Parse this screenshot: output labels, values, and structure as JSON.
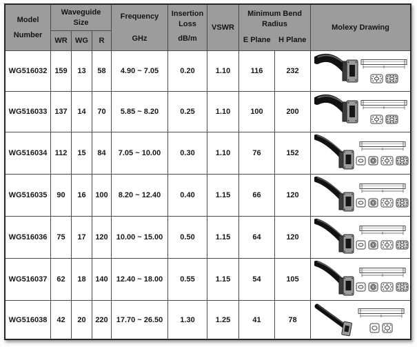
{
  "colors": {
    "header_bg": "#9c9c9c",
    "grid_line": "#4a4a4a",
    "outer_border": "#262626",
    "text": "#161616"
  },
  "header": {
    "model": [
      "Model",
      "Number"
    ],
    "waveguide_size": [
      "Waveguide",
      "Size"
    ],
    "wr": "WR",
    "wg": "WG",
    "r": "R",
    "frequency": "Frequency",
    "frequency_unit": "GHz",
    "insertion_loss": [
      "Insertion",
      "Loss"
    ],
    "insertion_unit": "dB/m",
    "vswr": "VSWR",
    "min_bend": [
      "Minimum Bend",
      "Radius"
    ],
    "e_plane": "E Plane",
    "h_plane": "H Plane",
    "molexy": "Molexy Drawing"
  },
  "rows": [
    {
      "model": "WG516032",
      "wr": "159",
      "wg": "13",
      "r": "58",
      "freq": "4.90 ~ 7.05",
      "loss": "0.20",
      "vswr": "1.10",
      "e": "116",
      "h": "232",
      "drawing": {
        "guide": "short-curved",
        "flanges": [
          "dots",
          "dense"
        ]
      }
    },
    {
      "model": "WG516033",
      "wr": "137",
      "wg": "14",
      "r": "70",
      "freq": "5.85 ~ 8.20",
      "loss": "0.25",
      "vswr": "1.10",
      "e": "100",
      "h": "200",
      "drawing": {
        "guide": "short-curved",
        "flanges": [
          "dots",
          "dense"
        ]
      }
    },
    {
      "model": "WG516034",
      "wr": "112",
      "wg": "15",
      "r": "84",
      "freq": "7.05 ~ 10.00",
      "loss": "0.30",
      "vswr": "1.10",
      "e": "76",
      "h": "152",
      "drawing": {
        "guide": "long-curved",
        "flanges": [
          "oval",
          "ring",
          "dots",
          "dense"
        ]
      }
    },
    {
      "model": "WG516035",
      "wr": "90",
      "wg": "16",
      "r": "100",
      "freq": "8.20 ~ 12.40",
      "loss": "0.40",
      "vswr": "1.15",
      "e": "66",
      "h": "120",
      "drawing": {
        "guide": "long-curved",
        "flanges": [
          "oval",
          "ring",
          "dots",
          "dense"
        ]
      }
    },
    {
      "model": "WG516036",
      "wr": "75",
      "wg": "17",
      "r": "120",
      "freq": "10.00 ~ 15.00",
      "loss": "0.50",
      "vswr": "1.15",
      "e": "64",
      "h": "120",
      "drawing": {
        "guide": "long-curved",
        "flanges": [
          "oval",
          "ring",
          "dots",
          "dense"
        ]
      }
    },
    {
      "model": "WG516037",
      "wr": "62",
      "wg": "18",
      "r": "140",
      "freq": "12.40 ~ 18.00",
      "loss": "0.55",
      "vswr": "1.15",
      "e": "54",
      "h": "105",
      "drawing": {
        "guide": "long-curved",
        "flanges": [
          "oval",
          "ring",
          "dots",
          "dense"
        ]
      }
    },
    {
      "model": "WG516038",
      "wr": "42",
      "wg": "20",
      "r": "220",
      "freq": "17.70 ~ 26.50",
      "loss": "1.30",
      "vswr": "1.25",
      "e": "41",
      "h": "78",
      "drawing": {
        "guide": "straight",
        "flanges": [
          "round",
          "round-ring"
        ]
      }
    }
  ],
  "chart_data": {
    "type": "table",
    "columns": [
      "Model Number",
      "WR",
      "WG",
      "R",
      "Frequency (GHz)",
      "Insertion Loss (dB/m)",
      "VSWR",
      "Minimum Bend Radius E Plane",
      "Minimum Bend Radius H Plane",
      "Molexy Drawing"
    ],
    "rows": [
      [
        "WG516032",
        "159",
        "13",
        "58",
        "4.90 ~ 7.05",
        "0.20",
        "1.10",
        "116",
        "232",
        "flex waveguide drawing"
      ],
      [
        "WG516033",
        "137",
        "14",
        "70",
        "5.85 ~ 8.20",
        "0.25",
        "1.10",
        "100",
        "200",
        "flex waveguide drawing"
      ],
      [
        "WG516034",
        "112",
        "15",
        "84",
        "7.05 ~ 10.00",
        "0.30",
        "1.10",
        "76",
        "152",
        "flex waveguide drawing"
      ],
      [
        "WG516035",
        "90",
        "16",
        "100",
        "8.20 ~ 12.40",
        "0.40",
        "1.15",
        "66",
        "120",
        "flex waveguide drawing"
      ],
      [
        "WG516036",
        "75",
        "17",
        "120",
        "10.00 ~ 15.00",
        "0.50",
        "1.15",
        "64",
        "120",
        "flex waveguide drawing"
      ],
      [
        "WG516037",
        "62",
        "18",
        "140",
        "12.40 ~ 18.00",
        "0.55",
        "1.15",
        "54",
        "105",
        "flex waveguide drawing"
      ],
      [
        "WG516038",
        "42",
        "20",
        "220",
        "17.70 ~ 26.50",
        "1.30",
        "1.25",
        "41",
        "78",
        "flex waveguide drawing"
      ]
    ]
  }
}
